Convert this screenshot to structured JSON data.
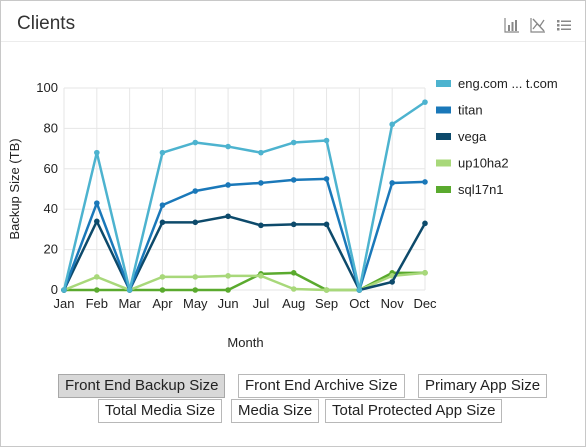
{
  "header": {
    "title": "Clients"
  },
  "toolbar": {
    "icons": [
      "bar-chart-icon",
      "hide-series-icon",
      "list-icon"
    ]
  },
  "colors": {
    "eng": "#4db3cf",
    "titan": "#1a78b9",
    "vega": "#0d4a6b",
    "up10ha2": "#a8d87a",
    "sql17n1": "#5aaa2e",
    "grid": "#e6e6e6"
  },
  "chart_data": {
    "type": "line",
    "xlabel": "Month",
    "ylabel": "Backup Size (TB)",
    "ylim": [
      0,
      100
    ],
    "yticks": [
      0,
      20,
      40,
      60,
      80,
      100
    ],
    "categories": [
      "Jan",
      "Feb",
      "Mar",
      "Apr",
      "May",
      "Jun",
      "Jul",
      "Aug",
      "Sep",
      "Oct",
      "Nov",
      "Dec"
    ],
    "legend_position": "right",
    "grid": true,
    "series": [
      {
        "name": "eng.com ... t.com",
        "color": "#4db3cf",
        "values": [
          0,
          68,
          0,
          68,
          73,
          71,
          68,
          73,
          74,
          0,
          82,
          93
        ]
      },
      {
        "name": "titan",
        "color": "#1a78b9",
        "values": [
          0,
          43,
          0,
          42,
          49,
          52,
          53,
          54.5,
          55,
          0,
          53,
          53.5
        ]
      },
      {
        "name": "vega",
        "color": "#0d4a6b",
        "values": [
          0,
          34,
          0,
          33.5,
          33.5,
          36.5,
          32,
          32.5,
          32.5,
          0,
          4,
          33
        ]
      },
      {
        "name": "up10ha2",
        "color": "#a8d87a",
        "values": [
          0,
          6.5,
          0,
          6.5,
          6.5,
          7,
          7,
          0.5,
          0,
          0,
          7,
          8.5
        ]
      },
      {
        "name": "sql17n1",
        "color": "#5aaa2e",
        "values": [
          0,
          0,
          0,
          0,
          0,
          0,
          8,
          8.5,
          0,
          0,
          8.5,
          8.5
        ]
      }
    ]
  },
  "buttons": [
    {
      "label": "Front End Backup Size",
      "active": true
    },
    {
      "label": "Front End Archive Size",
      "active": false
    },
    {
      "label": "Primary App Size",
      "active": false
    },
    {
      "label": "Total Media Size",
      "active": false
    },
    {
      "label": "Media Size",
      "active": false
    },
    {
      "label": "Total Protected App Size",
      "active": false
    }
  ]
}
